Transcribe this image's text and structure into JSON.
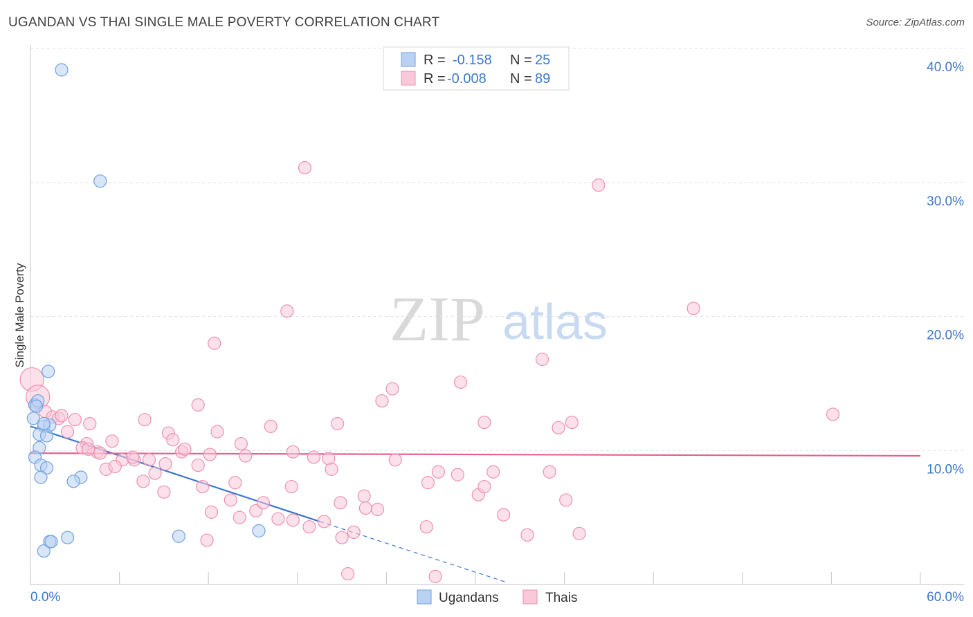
{
  "title": "UGANDAN VS THAI SINGLE MALE POVERTY CORRELATION CHART",
  "source": "Source: ZipAtlas.com",
  "watermark": {
    "zip": "ZIP",
    "atlas": "atlas"
  },
  "chart_data": {
    "type": "scatter",
    "title": "UGANDAN VS THAI SINGLE MALE POVERTY CORRELATION CHART",
    "xlabel": "",
    "ylabel": "Single Male Poverty",
    "xlim": [
      0,
      60
    ],
    "ylim": [
      0,
      40
    ],
    "x_tick_labels": [
      "0.0%",
      "60.0%"
    ],
    "y_ticks": [
      10,
      20,
      30,
      40
    ],
    "y_tick_labels": [
      "10.0%",
      "20.0%",
      "30.0%",
      "40.0%"
    ],
    "grid": true,
    "legend_position": "top-center",
    "legend": {
      "rows": [
        {
          "r_label": "R =",
          "r_value": "-0.158",
          "n_label": "N =",
          "n_value": "25"
        },
        {
          "r_label": "R =",
          "r_value": "-0.008",
          "n_label": "N =",
          "n_value": "89"
        }
      ]
    },
    "series": [
      {
        "name": "Ugandans",
        "color": "#6fa0e0",
        "fill": "#b9d2f3",
        "line_color": "#3a74d0",
        "trend": {
          "x0": 0,
          "y0": 11.8,
          "x1": 19.5,
          "y1": 4.7,
          "dashed_to_x": 32,
          "dashed_to_y": 0.2
        },
        "points": [
          [
            2.1,
            38.4
          ],
          [
            4.7,
            30.1
          ],
          [
            0.3,
            13.4
          ],
          [
            0.2,
            12.4
          ],
          [
            0.5,
            13.7
          ],
          [
            0.4,
            13.3
          ],
          [
            1.2,
            15.9
          ],
          [
            0.9,
            11.8
          ],
          [
            1.3,
            11.9
          ],
          [
            0.6,
            11.2
          ],
          [
            1.1,
            11.1
          ],
          [
            0.6,
            10.2
          ],
          [
            0.3,
            9.5
          ],
          [
            0.7,
            8.9
          ],
          [
            1.1,
            8.7
          ],
          [
            0.7,
            8.0
          ],
          [
            3.4,
            8.0
          ],
          [
            2.9,
            7.7
          ],
          [
            2.5,
            3.5
          ],
          [
            1.3,
            3.2
          ],
          [
            1.4,
            3.2
          ],
          [
            0.9,
            2.5
          ],
          [
            10.0,
            3.6
          ],
          [
            15.4,
            4.0
          ],
          [
            0.9,
            12.0
          ]
        ]
      },
      {
        "name": "Thais",
        "color": "#ee90b0",
        "fill": "#f9c9d9",
        "line_color": "#e8608e",
        "trend": {
          "x0": 0,
          "y0": 9.8,
          "x1": 60,
          "y1": 9.6
        },
        "points": [
          [
            0.1,
            15.3
          ],
          [
            0.5,
            14.0
          ],
          [
            1.0,
            12.9
          ],
          [
            1.5,
            12.5
          ],
          [
            1.9,
            12.4
          ],
          [
            2.1,
            12.6
          ],
          [
            3.0,
            12.3
          ],
          [
            4.0,
            12.0
          ],
          [
            2.5,
            11.4
          ],
          [
            3.8,
            10.5
          ],
          [
            5.5,
            10.7
          ],
          [
            4.5,
            9.9
          ],
          [
            3.5,
            10.2
          ],
          [
            4.7,
            9.8
          ],
          [
            6.2,
            9.3
          ],
          [
            7.0,
            9.3
          ],
          [
            5.1,
            8.6
          ],
          [
            5.7,
            8.8
          ],
          [
            7.7,
            12.3
          ],
          [
            9.3,
            11.3
          ],
          [
            9.6,
            10.8
          ],
          [
            10.2,
            9.9
          ],
          [
            10.4,
            10.1
          ],
          [
            8.0,
            9.3
          ],
          [
            9.1,
            9.0
          ],
          [
            8.4,
            8.3
          ],
          [
            7.6,
            7.7
          ],
          [
            11.3,
            8.9
          ],
          [
            11.3,
            13.4
          ],
          [
            12.6,
            11.4
          ],
          [
            12.1,
            9.7
          ],
          [
            14.2,
            10.5
          ],
          [
            14.5,
            9.6
          ],
          [
            16.2,
            11.8
          ],
          [
            17.7,
            9.9
          ],
          [
            17.6,
            7.3
          ],
          [
            13.8,
            7.6
          ],
          [
            13.5,
            6.3
          ],
          [
            14.1,
            5.0
          ],
          [
            15.2,
            5.5
          ],
          [
            15.7,
            6.1
          ],
          [
            11.6,
            7.3
          ],
          [
            9.0,
            6.9
          ],
          [
            12.2,
            5.4
          ],
          [
            11.9,
            3.3
          ],
          [
            16.7,
            4.9
          ],
          [
            17.7,
            4.8
          ],
          [
            18.8,
            4.3
          ],
          [
            19.8,
            4.7
          ],
          [
            19.1,
            9.5
          ],
          [
            20.1,
            9.4
          ],
          [
            20.3,
            8.6
          ],
          [
            20.9,
            6.1
          ],
          [
            21.0,
            3.5
          ],
          [
            21.8,
            3.9
          ],
          [
            22.5,
            6.6
          ],
          [
            22.6,
            5.7
          ],
          [
            23.4,
            5.6
          ],
          [
            24.6,
            9.3
          ],
          [
            23.7,
            13.7
          ],
          [
            24.4,
            14.6
          ],
          [
            12.4,
            18.0
          ],
          [
            17.3,
            20.4
          ],
          [
            18.5,
            31.1
          ],
          [
            20.7,
            12.0
          ],
          [
            21.4,
            0.8
          ],
          [
            26.8,
            7.6
          ],
          [
            26.7,
            4.3
          ],
          [
            27.3,
            0.6
          ],
          [
            27.5,
            8.4
          ],
          [
            28.8,
            8.2
          ],
          [
            29.0,
            15.1
          ],
          [
            30.2,
            6.7
          ],
          [
            30.6,
            7.3
          ],
          [
            30.6,
            12.1
          ],
          [
            31.2,
            8.4
          ],
          [
            31.9,
            5.2
          ],
          [
            33.5,
            3.7
          ],
          [
            34.5,
            16.8
          ],
          [
            35.0,
            8.4
          ],
          [
            35.6,
            11.7
          ],
          [
            36.1,
            6.3
          ],
          [
            36.5,
            12.1
          ],
          [
            37.0,
            3.8
          ],
          [
            38.3,
            29.8
          ],
          [
            44.7,
            20.6
          ],
          [
            54.1,
            12.7
          ],
          [
            6.9,
            9.5
          ],
          [
            3.9,
            10.1
          ]
        ]
      }
    ]
  },
  "bottom_legend": [
    {
      "label": "Ugandans"
    },
    {
      "label": "Thais"
    }
  ],
  "legend_swatch_colors": {
    "ugandans": "#b9d2f3",
    "thais": "#f9c9d9"
  }
}
